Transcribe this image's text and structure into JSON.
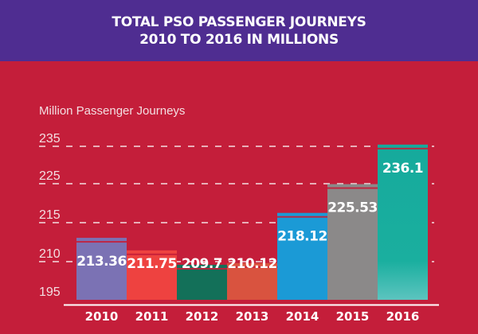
{
  "header": {
    "line1": "TOTAL PSO PASSENGER JOURNEYS",
    "line2": "2010 TO 2016 IN MILLIONS"
  },
  "colors": {
    "background": "#c41e3a",
    "header": "#4f2d91",
    "separator": "#c41e3a",
    "gridline": "#f3dfe2",
    "baseline": "#ffffff"
  },
  "chart_data": {
    "type": "bar",
    "title": "TOTAL PSO PASSENGER JOURNEYS 2010 TO 2016 IN MILLIONS",
    "xlabel": "",
    "ylabel": "Million Passenger Journeys",
    "categories": [
      "2010",
      "2011",
      "2012",
      "2013",
      "2014",
      "2015",
      "2016"
    ],
    "values": [
      213.36,
      211.75,
      209.7,
      210.12,
      218.12,
      225.53,
      236.1
    ],
    "value_labels": [
      "213.36",
      "211.75",
      "209.7",
      "210.12",
      "218.12",
      "225.53",
      "236.1"
    ],
    "bar_colors": [
      "#7b72b4",
      "#ee4240",
      "#137059",
      "#d9533f",
      "#1b9ad6",
      "#8b8989",
      "#16aa9c"
    ],
    "yticks": [
      195,
      210,
      215,
      225,
      235
    ],
    "ytick_labels": [
      "195",
      "210",
      "215",
      "225",
      "235"
    ],
    "dashed_gridlines": [
      210,
      215,
      225,
      235
    ],
    "axis_break": "non-linear axis between 195 and 210",
    "ylim": [
      195,
      237
    ],
    "grid": true,
    "legend": "none"
  }
}
